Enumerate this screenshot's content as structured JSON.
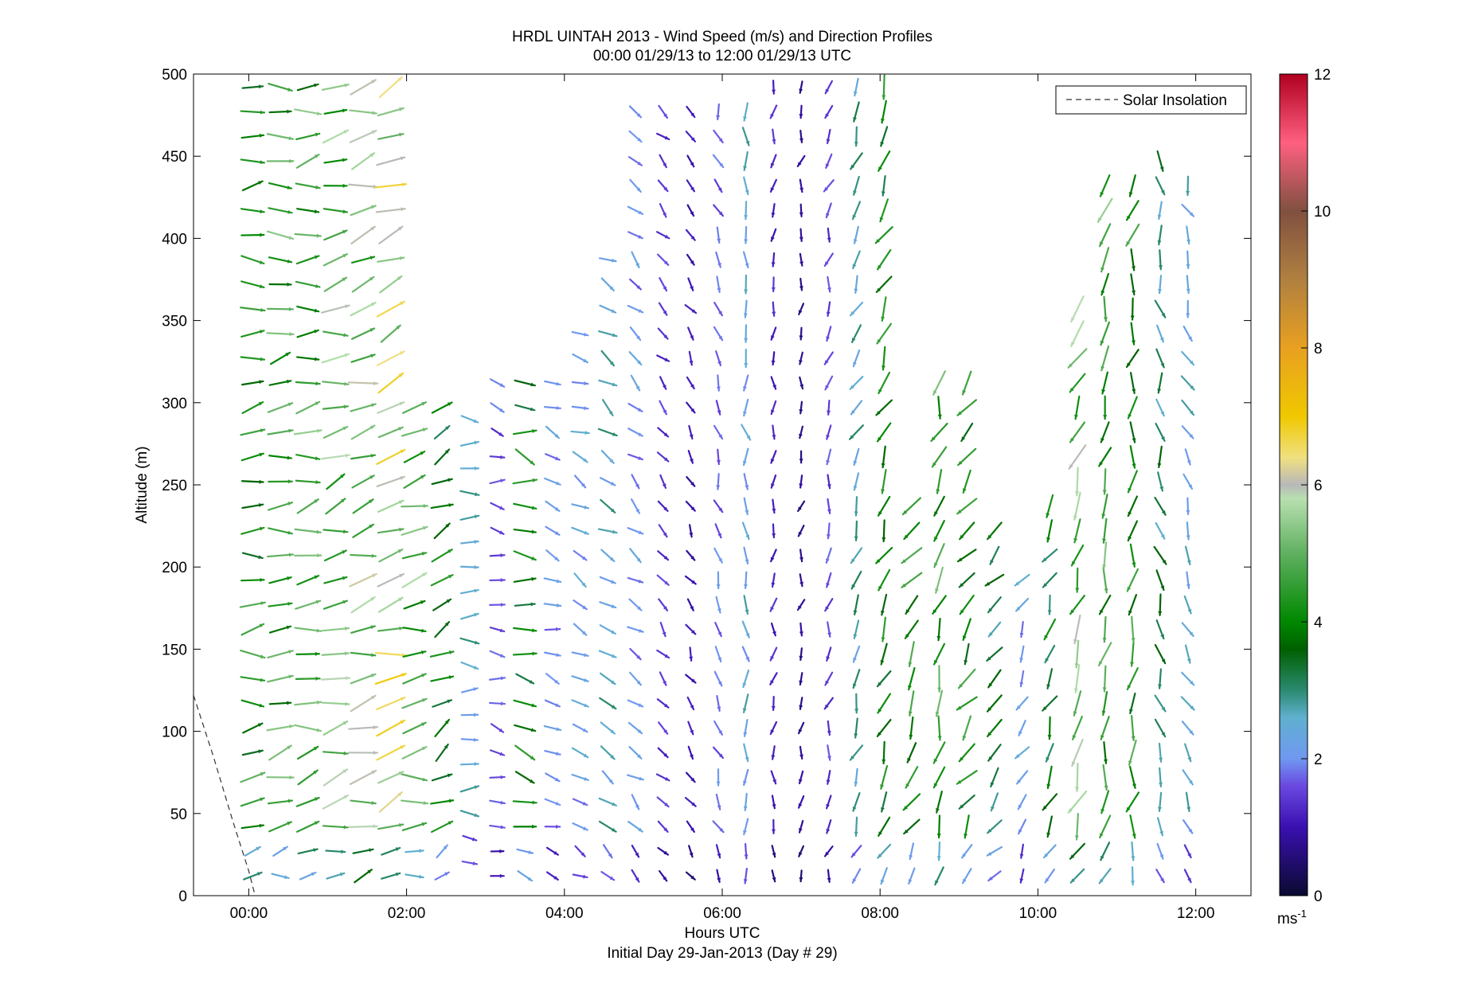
{
  "chart_data": {
    "type": "quiver",
    "title_line1": "HRDL UINTAH 2013 - Wind Speed (m/s) and Direction Profiles",
    "title_line2": "00:00 01/29/13 to 12:00 01/29/13  UTC",
    "xlabel": "Hours UTC",
    "xlabel_sub": "Initial Day 29-Jan-2013 (Day # 29)",
    "ylabel": "Altitude (m)",
    "xlim_hours": [
      -0.7,
      12.7
    ],
    "ylim": [
      0,
      500
    ],
    "x_ticks": [
      {
        "value": 0,
        "label": "00:00"
      },
      {
        "value": 2,
        "label": "02:00"
      },
      {
        "value": 4,
        "label": "04:00"
      },
      {
        "value": 6,
        "label": "06:00"
      },
      {
        "value": 8,
        "label": "08:00"
      },
      {
        "value": 10,
        "label": "10:00"
      },
      {
        "value": 12,
        "label": "12:00"
      }
    ],
    "y_ticks": [
      0,
      50,
      100,
      150,
      200,
      250,
      300,
      350,
      400,
      450,
      500
    ],
    "legend": {
      "label": "Solar Insolation",
      "position": "top-right",
      "style": "dashed"
    },
    "colorbar": {
      "min": 0,
      "max": 12,
      "ticks": [
        0,
        2,
        4,
        6,
        8,
        10,
        12
      ],
      "unit_label": "ms",
      "unit_exponent": "-1",
      "stops": [
        {
          "v": 0,
          "c": "#0a0a30"
        },
        {
          "v": 1,
          "c": "#3a10b0"
        },
        {
          "v": 1.6,
          "c": "#6a48e0"
        },
        {
          "v": 2,
          "c": "#7098f0"
        },
        {
          "v": 2.6,
          "c": "#60b0d0"
        },
        {
          "v": 3,
          "c": "#2a8a70"
        },
        {
          "v": 3.6,
          "c": "#006000"
        },
        {
          "v": 4,
          "c": "#008800"
        },
        {
          "v": 5,
          "c": "#60b060"
        },
        {
          "v": 5.8,
          "c": "#b8e0b0"
        },
        {
          "v": 6,
          "c": "#b8b8b8"
        },
        {
          "v": 6.4,
          "c": "#f0e080"
        },
        {
          "v": 7,
          "c": "#f0c800"
        },
        {
          "v": 8,
          "c": "#e8a020"
        },
        {
          "v": 9,
          "c": "#b08040"
        },
        {
          "v": 10,
          "c": "#805040"
        },
        {
          "v": 11,
          "c": "#ff6080"
        },
        {
          "v": 12,
          "c": "#b00020"
        }
      ]
    },
    "solar_insolation_curve": [
      {
        "hour": -0.7,
        "altitude": 122
      },
      {
        "hour": -0.45,
        "altitude": 85
      },
      {
        "hour": -0.2,
        "altitude": 45
      },
      {
        "hour": 0.0,
        "altitude": 15
      },
      {
        "hour": 0.08,
        "altitude": 0
      }
    ],
    "wind_columns": [
      {
        "hour": 0.05,
        "altitudes": [
          12,
          500
        ],
        "direction_from": 265,
        "speed": 4.2
      },
      {
        "hour": 0.4,
        "altitudes": [
          12,
          500
        ],
        "direction_from": 262,
        "speed": 4.5
      },
      {
        "hour": 0.75,
        "altitudes": [
          12,
          500
        ],
        "direction_from": 258,
        "speed": 4.6
      },
      {
        "hour": 1.1,
        "altitudes": [
          12,
          500
        ],
        "direction_from": 255,
        "speed": 5.0
      },
      {
        "hour": 1.45,
        "altitudes": [
          12,
          500
        ],
        "direction_from": 252,
        "speed": 5.3
      },
      {
        "hour": 1.8,
        "altitudes": [
          12,
          500
        ],
        "direction_from": 250,
        "speed": 5.8
      },
      {
        "hour": 2.1,
        "altitudes": [
          12,
          305
        ],
        "direction_from": 262,
        "speed": 4.8
      },
      {
        "hour": 2.45,
        "altitudes": [
          12,
          300
        ],
        "direction_from": 240,
        "speed": 3.8
      },
      {
        "hour": 2.8,
        "altitudes": [
          20,
          300
        ],
        "direction_from": 270,
        "speed": 2.5
      },
      {
        "hour": 3.15,
        "altitudes": [
          12,
          315
        ],
        "direction_from": 280,
        "speed": 1.6
      },
      {
        "hour": 3.5,
        "altitudes": [
          12,
          315
        ],
        "direction_from": 285,
        "speed": 3.8
      },
      {
        "hour": 3.85,
        "altitudes": [
          12,
          315
        ],
        "direction_from": 290,
        "speed": 2.0
      },
      {
        "hour": 4.2,
        "altitudes": [
          12,
          345
        ],
        "direction_from": 300,
        "speed": 2.2
      },
      {
        "hour": 4.55,
        "altitudes": [
          12,
          400
        ],
        "direction_from": 305,
        "speed": 2.6
      },
      {
        "hour": 4.9,
        "altitudes": [
          12,
          490
        ],
        "direction_from": 310,
        "speed": 2.0
      },
      {
        "hour": 5.25,
        "altitudes": [
          12,
          490
        ],
        "direction_from": 320,
        "speed": 1.4
      },
      {
        "hour": 5.6,
        "altitudes": [
          12,
          490
        ],
        "direction_from": 330,
        "speed": 1.0
      },
      {
        "hour": 5.95,
        "altitudes": [
          12,
          490
        ],
        "direction_from": 340,
        "speed": 1.8
      },
      {
        "hour": 6.3,
        "altitudes": [
          12,
          490
        ],
        "direction_from": 355,
        "speed": 2.4
      },
      {
        "hour": 6.65,
        "altitudes": [
          12,
          500
        ],
        "direction_from": 5,
        "speed": 1.2
      },
      {
        "hour": 7.0,
        "altitudes": [
          12,
          500
        ],
        "direction_from": 10,
        "speed": 0.8
      },
      {
        "hour": 7.35,
        "altitudes": [
          12,
          500
        ],
        "direction_from": 15,
        "speed": 1.5
      },
      {
        "hour": 7.7,
        "altitudes": [
          12,
          500
        ],
        "direction_from": 20,
        "speed": 2.8
      },
      {
        "hour": 8.05,
        "altitudes": [
          12,
          500
        ],
        "direction_from": 25,
        "speed": 3.9
      },
      {
        "hour": 8.4,
        "altitudes": [
          12,
          240
        ],
        "direction_from": 30,
        "speed": 4.2
      },
      {
        "hour": 8.75,
        "altitudes": [
          12,
          325
        ],
        "direction_from": 20,
        "speed": 4.4
      },
      {
        "hour": 9.1,
        "altitudes": [
          12,
          315
        ],
        "direction_from": 35,
        "speed": 4.0
      },
      {
        "hour": 9.45,
        "altitudes": [
          12,
          230
        ],
        "direction_from": 40,
        "speed": 3.2
      },
      {
        "hour": 9.8,
        "altitudes": [
          12,
          205
        ],
        "direction_from": 30,
        "speed": 2.2
      },
      {
        "hour": 10.15,
        "altitudes": [
          12,
          250
        ],
        "direction_from": 25,
        "speed": 3.6
      },
      {
        "hour": 10.5,
        "altitudes": [
          12,
          365
        ],
        "direction_from": 20,
        "speed": 5.2
      },
      {
        "hour": 10.85,
        "altitudes": [
          12,
          435
        ],
        "direction_from": 15,
        "speed": 4.6
      },
      {
        "hour": 11.2,
        "altitudes": [
          12,
          440
        ],
        "direction_from": 10,
        "speed": 4.2
      },
      {
        "hour": 11.55,
        "altitudes": [
          12,
          455
        ],
        "direction_from": 350,
        "speed": 3.0
      },
      {
        "hour": 11.9,
        "altitudes": [
          12,
          435
        ],
        "direction_from": 340,
        "speed": 2.4
      }
    ]
  }
}
